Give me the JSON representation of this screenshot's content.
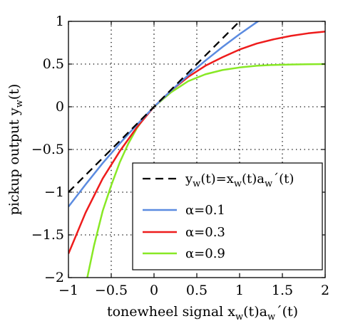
{
  "chart_data": {
    "type": "line",
    "title": "",
    "xlabel": {
      "prefix": "tonewheel signal x",
      "sub1": "w",
      "mid": "(t)a",
      "sub2": "w",
      "suffix": "´(t)"
    },
    "ylabel": {
      "prefix": "pickup output y",
      "sub": "w",
      "suffix": "(t)"
    },
    "xlim": [
      -1,
      2
    ],
    "ylim": [
      -2,
      1
    ],
    "xticks": [
      -1,
      -0.5,
      0,
      0.5,
      1,
      1.5,
      2
    ],
    "xtick_labels": [
      "−1",
      "−0.5",
      "0",
      "0.5",
      "1",
      "1.5",
      "2"
    ],
    "yticks": [
      -2,
      -1.5,
      -1,
      -0.5,
      0,
      0.5,
      1
    ],
    "ytick_labels": [
      "−2",
      "−1.5",
      "−1",
      "−0.5",
      "0",
      "0.5",
      "1"
    ],
    "grid": true,
    "legend_position": "bottom-right",
    "series": [
      {
        "name": {
          "prefix": "y",
          "sub1": "w",
          "mid": "(t)=x",
          "sub2": "w",
          "mid2": "(t)a",
          "sub3": "w",
          "suffix": "´(t)"
        },
        "color": "#000000",
        "dash": true,
        "x": [
          -1,
          -0.5,
          0,
          0.5,
          1,
          1.2
        ],
        "y": [
          -1,
          -0.5,
          0,
          0.5,
          1,
          1.2
        ]
      },
      {
        "name": "α=0.1",
        "color": "#5b8be0",
        "dash": false,
        "x": [
          -1.0,
          -0.8,
          -0.6,
          -0.4,
          -0.2,
          0.0,
          0.2,
          0.4,
          0.6,
          0.8,
          1.0,
          1.2,
          1.4
        ],
        "y": [
          -1.17,
          -0.91,
          -0.66,
          -0.43,
          -0.21,
          0.0,
          0.19,
          0.37,
          0.54,
          0.7,
          0.85,
          0.99,
          1.12
        ]
      },
      {
        "name": "α=0.3",
        "color": "#ee1c1c",
        "dash": false,
        "x": [
          -1.0,
          -0.8,
          -0.6,
          -0.4,
          -0.2,
          0.0,
          0.2,
          0.4,
          0.6,
          0.8,
          1.0,
          1.2,
          1.4,
          1.6,
          1.8,
          2.0
        ],
        "y": [
          -1.72,
          -1.24,
          -0.84,
          -0.52,
          -0.24,
          0.0,
          0.19,
          0.35,
          0.48,
          0.58,
          0.67,
          0.74,
          0.79,
          0.83,
          0.86,
          0.88
        ]
      },
      {
        "name": "α=0.9",
        "color": "#88e825",
        "dash": false,
        "x": [
          -0.78,
          -0.7,
          -0.6,
          -0.5,
          -0.4,
          -0.3,
          -0.2,
          -0.1,
          0.0,
          0.2,
          0.4,
          0.6,
          0.8,
          1.0,
          1.2,
          1.4,
          1.6,
          1.8,
          2.0
        ],
        "y": [
          -2.0,
          -1.62,
          -1.22,
          -0.92,
          -0.65,
          -0.43,
          -0.25,
          -0.11,
          0.0,
          0.17,
          0.3,
          0.38,
          0.43,
          0.46,
          0.48,
          0.49,
          0.495,
          0.498,
          0.5
        ]
      }
    ]
  }
}
